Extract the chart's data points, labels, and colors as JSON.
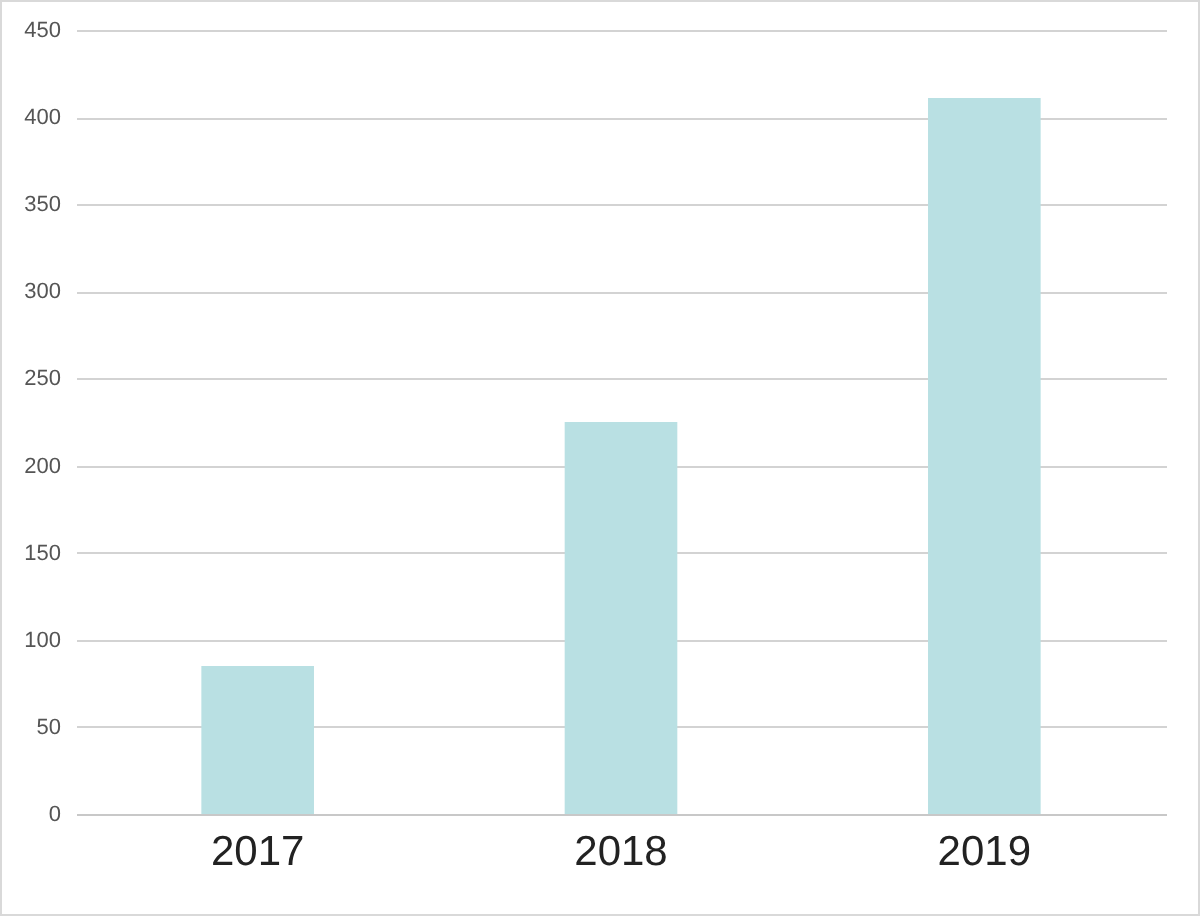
{
  "chart_data": {
    "type": "bar",
    "categories": [
      "2017",
      "2018",
      "2019"
    ],
    "values": [
      85,
      225,
      411
    ],
    "color": "#b9e0e3",
    "ylim": [
      0,
      450
    ],
    "yticks": [
      0,
      50,
      100,
      150,
      200,
      250,
      300,
      350,
      400,
      450
    ],
    "grid": "y"
  }
}
